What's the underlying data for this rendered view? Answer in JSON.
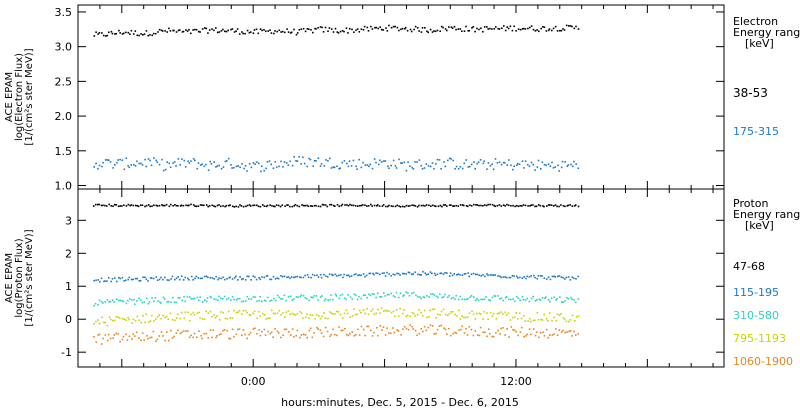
{
  "chart_data": [
    {
      "type": "scatter",
      "ylabel_lines": [
        "ACE EPAM",
        "log(Electron Flux)",
        "[1/(cm²s ster MeV)]"
      ],
      "ylim": [
        0.95,
        3.6
      ],
      "yticks": [
        "1.0",
        "1.5",
        "2.0",
        "2.5",
        "3.0",
        "3.5"
      ],
      "legend_title_lines": [
        "Electron",
        "Energy range",
        "[keV]"
      ],
      "series": [
        {
          "name": "38-53",
          "color": "#000000",
          "x": [
            -7.0,
            -6.0,
            -5.0,
            -4.0,
            -3.0,
            -2.0,
            -1.0,
            0.0,
            1.0,
            2.0,
            3.0,
            4.0,
            5.0,
            6.0,
            7.0,
            8.0,
            9.0,
            10.0,
            11.0,
            12.0,
            13.0,
            14.0,
            14.8
          ],
          "y": [
            3.18,
            3.22,
            3.2,
            3.24,
            3.22,
            3.25,
            3.24,
            3.22,
            3.24,
            3.22,
            3.26,
            3.24,
            3.26,
            3.28,
            3.27,
            3.25,
            3.28,
            3.26,
            3.27,
            3.28,
            3.27,
            3.28,
            3.28
          ]
        },
        {
          "name": "175-315",
          "color": "#1e78c8",
          "x": [
            -7.0,
            -6.0,
            -5.0,
            -4.0,
            -3.0,
            -2.0,
            -1.0,
            0.0,
            1.0,
            2.0,
            3.0,
            4.0,
            5.0,
            6.0,
            7.0,
            8.0,
            9.0,
            10.0,
            11.0,
            12.0,
            13.0,
            14.0,
            14.8
          ],
          "y": [
            1.33,
            1.32,
            1.35,
            1.3,
            1.34,
            1.3,
            1.33,
            1.28,
            1.32,
            1.36,
            1.35,
            1.33,
            1.32,
            1.34,
            1.3,
            1.32,
            1.33,
            1.3,
            1.32,
            1.31,
            1.3,
            1.3,
            1.3
          ]
        }
      ]
    },
    {
      "type": "scatter",
      "ylabel_lines": [
        "ACE EPAM",
        "log(Proton Flux)",
        "[1/(cm²s ster MeV)]"
      ],
      "ylim": [
        -1.45,
        3.95
      ],
      "yticks": [
        "-1",
        "0",
        "1",
        "2",
        "3"
      ],
      "legend_title_lines": [
        "Proton",
        "Energy range",
        "[keV]"
      ],
      "series": [
        {
          "name": "47-68",
          "color": "#000000",
          "x": [
            -7.0,
            -5.0,
            -3.0,
            -1.0,
            1.0,
            3.0,
            5.0,
            7.0,
            9.0,
            11.0,
            13.0,
            14.8
          ],
          "y": [
            3.48,
            3.47,
            3.48,
            3.46,
            3.47,
            3.47,
            3.48,
            3.46,
            3.47,
            3.48,
            3.47,
            3.47
          ]
        },
        {
          "name": "115-195",
          "color": "#1e78c8",
          "x": [
            -7.0,
            -5.0,
            -3.0,
            -1.0,
            1.0,
            3.0,
            5.0,
            7.0,
            9.0,
            11.0,
            13.0,
            14.8
          ],
          "y": [
            1.22,
            1.24,
            1.28,
            1.27,
            1.29,
            1.33,
            1.36,
            1.42,
            1.38,
            1.35,
            1.3,
            1.26
          ]
        },
        {
          "name": "310-580",
          "color": "#27d4c4",
          "x": [
            -7.0,
            -5.0,
            -3.0,
            -1.0,
            1.0,
            3.0,
            5.0,
            7.0,
            9.0,
            11.0,
            13.0,
            14.8
          ],
          "y": [
            0.52,
            0.58,
            0.62,
            0.64,
            0.66,
            0.68,
            0.7,
            0.76,
            0.7,
            0.66,
            0.62,
            0.6
          ]
        },
        {
          "name": "795-1193",
          "color": "#c8d400",
          "x": [
            -7.0,
            -5.0,
            -3.0,
            -1.0,
            1.0,
            3.0,
            5.0,
            7.0,
            9.0,
            11.0,
            13.0,
            14.8
          ],
          "y": [
            -0.05,
            0.05,
            0.12,
            0.15,
            0.16,
            0.18,
            0.2,
            0.24,
            0.18,
            0.12,
            0.08,
            0.05
          ]
        },
        {
          "name": "1060-1900",
          "color": "#e8861e",
          "x": [
            -7.0,
            -5.0,
            -3.0,
            -1.0,
            1.0,
            3.0,
            5.0,
            7.0,
            9.0,
            11.0,
            13.0,
            14.8
          ],
          "y": [
            -0.58,
            -0.5,
            -0.45,
            -0.42,
            -0.4,
            -0.38,
            -0.35,
            -0.3,
            -0.33,
            -0.36,
            -0.38,
            -0.4
          ]
        }
      ]
    }
  ],
  "xaxis": {
    "label": "hours:minutes, Dec.  5, 2015 - Dec.  6, 2015",
    "range": [
      -8.0,
      21.5
    ],
    "tick_labels": [
      {
        "x": 0,
        "label": "0:00"
      },
      {
        "x": 12,
        "label": "12:00"
      }
    ]
  }
}
